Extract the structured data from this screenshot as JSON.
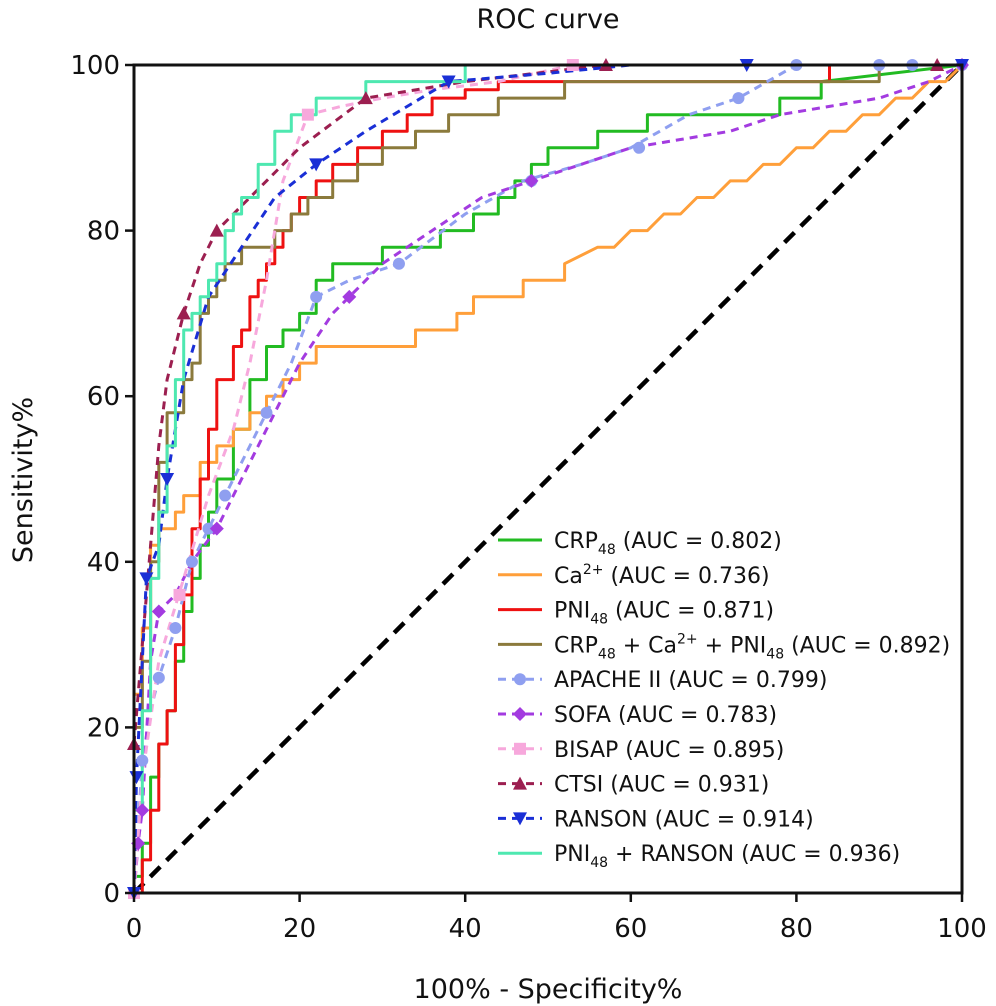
{
  "chart_data": {
    "type": "line",
    "title": "ROC curve",
    "xlabel": "100% - Specificity%",
    "ylabel": "Sensitivity%",
    "xlim": [
      0,
      100
    ],
    "ylim": [
      0,
      100
    ],
    "xticks": [
      "0",
      "20",
      "40",
      "60",
      "80",
      "100"
    ],
    "yticks": [
      "0",
      "20",
      "40",
      "60",
      "80",
      "100"
    ],
    "grid": false,
    "legend_position": "bottom-right",
    "reference_line": {
      "x": [
        0,
        100
      ],
      "y": [
        0,
        100
      ],
      "color": "#000000",
      "style": "dashed"
    },
    "series": [
      {
        "name": "CRP48 (AUC = 0.802)",
        "label_parts": [
          "CRP",
          "48",
          " (AUC = 0.802)"
        ],
        "label_kinds": [
          "t",
          "sub",
          "t"
        ],
        "color": "#22bb22",
        "style": "solid",
        "marker": "none",
        "x": [
          0,
          0,
          1,
          1,
          2,
          2,
          3,
          3,
          4,
          4,
          5,
          5,
          6,
          6,
          7,
          7,
          8,
          8,
          9,
          9,
          10,
          10,
          12,
          12,
          14,
          14,
          16,
          16,
          18,
          18,
          20,
          20,
          22,
          22,
          24,
          24,
          30,
          30,
          37,
          37,
          41,
          41,
          44,
          44,
          46,
          46,
          48,
          48,
          50,
          50,
          56,
          56,
          62,
          62,
          67,
          67,
          72,
          72,
          78,
          78,
          83,
          83,
          100
        ],
        "y": [
          0,
          2,
          2,
          6,
          6,
          14,
          14,
          18,
          18,
          22,
          22,
          28,
          28,
          34,
          34,
          38,
          38,
          42,
          42,
          46,
          46,
          50,
          50,
          56,
          56,
          62,
          62,
          66,
          66,
          68,
          68,
          70,
          70,
          74,
          74,
          76,
          76,
          78,
          78,
          80,
          80,
          82,
          82,
          84,
          84,
          86,
          86,
          88,
          88,
          90,
          90,
          92,
          92,
          94,
          94,
          94,
          94,
          94,
          94,
          96,
          96,
          98,
          100
        ]
      },
      {
        "name": "Ca2+ (AUC = 0.736)",
        "label_parts": [
          "Ca",
          "2+",
          " (AUC = 0.736)"
        ],
        "label_kinds": [
          "t",
          "sup",
          "t"
        ],
        "color": "#ff9f3a",
        "style": "solid",
        "marker": "none",
        "x": [
          0,
          0,
          1,
          1,
          2,
          2,
          3,
          3,
          5,
          5,
          6,
          6,
          8,
          8,
          10,
          10,
          12,
          12,
          14,
          14,
          16,
          16,
          18,
          18,
          20,
          20,
          22,
          22,
          24,
          24,
          34,
          34,
          39,
          39,
          41,
          41,
          44,
          44,
          47,
          47,
          50,
          50,
          52,
          52,
          56,
          58,
          60,
          62,
          64,
          66,
          68,
          70,
          72,
          74,
          76,
          78,
          80,
          82,
          84,
          86,
          88,
          90,
          92,
          94,
          96,
          98,
          100
        ],
        "y": [
          0,
          24,
          24,
          32,
          32,
          42,
          42,
          44,
          44,
          46,
          46,
          48,
          48,
          52,
          52,
          54,
          54,
          56,
          56,
          58,
          58,
          60,
          60,
          62,
          62,
          64,
          64,
          66,
          66,
          66,
          66,
          68,
          68,
          70,
          70,
          72,
          72,
          72,
          72,
          74,
          74,
          74,
          74,
          76,
          78,
          78,
          80,
          80,
          82,
          82,
          84,
          84,
          86,
          86,
          88,
          88,
          90,
          90,
          92,
          92,
          94,
          94,
          96,
          96,
          98,
          98,
          100
        ]
      },
      {
        "name": "PNI48 (AUC = 0.871)",
        "label_parts": [
          "PNI",
          "48",
          " (AUC = 0.871)"
        ],
        "label_kinds": [
          "t",
          "sub",
          "t"
        ],
        "color": "#ee1111",
        "style": "solid",
        "marker": "none",
        "x": [
          0,
          0,
          1,
          1,
          2,
          2,
          3,
          3,
          4,
          4,
          5,
          5,
          6,
          6,
          7,
          7,
          8,
          8,
          9,
          9,
          10,
          10,
          12,
          12,
          13,
          13,
          14,
          14,
          15,
          15,
          16,
          16,
          17,
          17,
          18,
          18,
          19,
          19,
          20,
          20,
          22,
          22,
          24,
          24,
          27,
          27,
          30,
          30,
          33,
          33,
          36,
          36,
          40,
          40,
          44,
          44,
          50,
          50,
          84,
          84,
          100
        ],
        "y": [
          0,
          0,
          0,
          4,
          4,
          10,
          10,
          18,
          18,
          22,
          22,
          30,
          30,
          36,
          36,
          44,
          44,
          50,
          50,
          56,
          56,
          62,
          62,
          66,
          66,
          68,
          68,
          72,
          72,
          74,
          74,
          76,
          76,
          78,
          78,
          80,
          80,
          82,
          82,
          84,
          84,
          86,
          86,
          88,
          88,
          90,
          90,
          92,
          92,
          94,
          94,
          96,
          96,
          97,
          97,
          98,
          98,
          98,
          98,
          100,
          100
        ]
      },
      {
        "name": "CRP48 + Ca2+ + PNI48 (AUC = 0.892)",
        "label_parts": [
          "CRP",
          "48",
          " + Ca",
          "2+",
          " + PNI",
          "48",
          " (AUC = 0.892)"
        ],
        "label_kinds": [
          "t",
          "sub",
          "t",
          "sup",
          "t",
          "sub",
          "t"
        ],
        "color": "#8b7a3c",
        "style": "solid",
        "marker": "none",
        "x": [
          0,
          0,
          1,
          1,
          2,
          2,
          3,
          3,
          4,
          4,
          6,
          6,
          7,
          7,
          8,
          8,
          9,
          9,
          10,
          10,
          11,
          11,
          13,
          13,
          15,
          15,
          17,
          17,
          19,
          19,
          21,
          21,
          24,
          24,
          27,
          27,
          30,
          30,
          34,
          34,
          38,
          38,
          40,
          40,
          44,
          44,
          52,
          52,
          90,
          90,
          100
        ],
        "y": [
          0,
          20,
          20,
          28,
          28,
          40,
          40,
          52,
          52,
          58,
          58,
          62,
          62,
          64,
          64,
          70,
          70,
          72,
          72,
          74,
          74,
          76,
          76,
          78,
          78,
          78,
          78,
          80,
          80,
          82,
          82,
          84,
          84,
          86,
          86,
          88,
          88,
          90,
          90,
          92,
          92,
          94,
          94,
          94,
          94,
          96,
          96,
          98,
          98,
          100,
          100
        ]
      },
      {
        "name": "APACHE II (AUC = 0.799)",
        "label_parts": [
          "APACHE II (AUC = 0.799)"
        ],
        "label_kinds": [
          "t"
        ],
        "color": "#8f9ff0",
        "style": "dashed",
        "marker": "circle",
        "x": [
          0,
          1,
          2,
          3,
          5,
          7,
          9,
          11,
          13,
          16,
          19,
          22,
          26,
          32,
          40,
          47,
          54,
          60,
          67,
          73,
          80,
          90,
          94,
          100
        ],
        "y": [
          0,
          16,
          22,
          26,
          32,
          40,
          44,
          48,
          52,
          58,
          64,
          72,
          74,
          76,
          82,
          86,
          88,
          90,
          94,
          96,
          100,
          100,
          100,
          100
        ],
        "marker_x": [
          0,
          1,
          3,
          5,
          7,
          9,
          11,
          16,
          22,
          32,
          48,
          61,
          73,
          80,
          90,
          94,
          100
        ],
        "marker_y": [
          0,
          16,
          26,
          32,
          40,
          44,
          48,
          58,
          72,
          76,
          86,
          90,
          96,
          100,
          100,
          100,
          100
        ]
      },
      {
        "name": "SOFA (AUC = 0.783)",
        "label_parts": [
          "SOFA (AUC = 0.783)"
        ],
        "label_kinds": [
          "t"
        ],
        "color": "#a33be0",
        "style": "dashed",
        "marker": "diamond",
        "x": [
          0,
          0.5,
          1,
          2,
          3,
          5,
          7,
          10,
          13,
          16,
          20,
          24,
          26,
          30,
          36,
          42,
          48,
          54,
          60,
          66,
          72,
          78,
          84,
          90,
          96,
          100
        ],
        "y": [
          0,
          6,
          10,
          28,
          34,
          36,
          40,
          44,
          50,
          56,
          64,
          70,
          72,
          76,
          80,
          84,
          86,
          88,
          90,
          91,
          92,
          94,
          95,
          96,
          98,
          100
        ],
        "marker_x": [
          0,
          0.5,
          1,
          3,
          10,
          26,
          48,
          100
        ],
        "marker_y": [
          0,
          6,
          10,
          34,
          44,
          72,
          86,
          100
        ]
      },
      {
        "name": "BISAP (AUC = 0.895)",
        "label_parts": [
          "BISAP (AUC = 0.895)"
        ],
        "label_kinds": [
          "t"
        ],
        "color": "#f7a8dc",
        "style": "dashed",
        "marker": "square",
        "x": [
          0,
          1,
          3,
          6,
          9,
          12,
          14,
          16,
          18,
          21,
          25,
          30,
          36,
          44,
          53,
          60,
          70,
          80,
          90,
          100
        ],
        "y": [
          0,
          14,
          28,
          38,
          48,
          56,
          64,
          74,
          86,
          94,
          95,
          96,
          97,
          98,
          100,
          100,
          100,
          100,
          100,
          100
        ],
        "marker_x": [
          0,
          5.5,
          21,
          53
        ],
        "marker_y": [
          0,
          36,
          94,
          100
        ]
      },
      {
        "name": "CTSI (AUC = 0.931)",
        "label_parts": [
          "CTSI (AUC = 0.931)"
        ],
        "label_kinds": [
          "t"
        ],
        "color": "#9c1f50",
        "style": "dashed",
        "marker": "triangle",
        "x": [
          0,
          1,
          2,
          3,
          4,
          6,
          8,
          10,
          14,
          20,
          28,
          40,
          57,
          70,
          97,
          100
        ],
        "y": [
          18,
          30,
          42,
          54,
          62,
          70,
          76,
          80,
          84,
          90,
          96,
          98,
          100,
          100,
          100,
          100
        ],
        "marker_x": [
          0,
          6,
          10,
          28,
          57,
          97
        ],
        "marker_y": [
          18,
          70,
          80,
          96,
          100,
          100
        ]
      },
      {
        "name": "RANSON (AUC = 0.914)",
        "label_parts": [
          "RANSON (AUC = 0.914)"
        ],
        "label_kinds": [
          "t"
        ],
        "color": "#1a2fd6",
        "style": "dashed",
        "marker": "triangle-down",
        "x": [
          0,
          0.3,
          1.5,
          3,
          4,
          6,
          9,
          13,
          17,
          22,
          28,
          38,
          50,
          60,
          74,
          85,
          100
        ],
        "y": [
          0,
          14,
          38,
          42,
          50,
          62,
          72,
          78,
          84,
          88,
          92,
          98,
          99,
          100,
          100,
          100,
          100
        ],
        "marker_x": [
          0,
          0.3,
          1.5,
          4,
          22,
          38,
          74,
          100
        ],
        "marker_y": [
          0,
          14,
          38,
          50,
          88,
          98,
          100,
          100
        ]
      },
      {
        "name": "PNI48 + RANSON (AUC = 0.936)",
        "label_parts": [
          "PNI",
          "48",
          " + RANSON (AUC = 0.936)"
        ],
        "label_kinds": [
          "t",
          "sub",
          "t"
        ],
        "color": "#4ee8b0",
        "style": "solid",
        "marker": "none",
        "x": [
          0,
          0,
          1,
          1,
          2,
          2,
          3,
          3,
          4,
          4,
          5,
          5,
          6,
          6,
          7,
          7,
          8,
          8,
          9,
          9,
          10,
          10,
          11,
          11,
          12,
          12,
          13,
          13,
          15,
          15,
          17,
          17,
          19,
          19,
          22,
          22,
          28,
          28,
          40,
          40,
          100
        ],
        "y": [
          0,
          10,
          10,
          22,
          22,
          38,
          38,
          46,
          46,
          54,
          54,
          62,
          62,
          68,
          68,
          70,
          70,
          72,
          72,
          74,
          74,
          76,
          76,
          80,
          80,
          82,
          82,
          84,
          84,
          88,
          88,
          92,
          92,
          94,
          94,
          96,
          96,
          98,
          98,
          100,
          100
        ]
      }
    ]
  }
}
